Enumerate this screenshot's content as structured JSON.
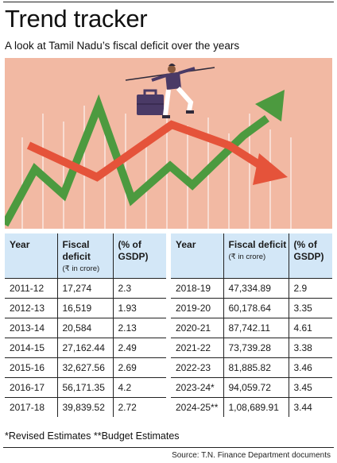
{
  "header": {
    "title": "Trend tracker",
    "subtitle": "A look at Tamil Nadu’s fiscal deficit over the years"
  },
  "illustration": {
    "description_icons": [
      "tightrope-walker",
      "briefcase",
      "green-up-arrow",
      "red-down-arrow"
    ],
    "colors": {
      "background": "#f2b9a3",
      "green": "#4c9a3f",
      "red": "#e5533a",
      "gridline": "#ffffff"
    }
  },
  "table": {
    "headers": {
      "year": "Year",
      "deficit": "Fiscal deficit",
      "deficit_unit": "(₹ in crore)",
      "gsdp": "(% of GSDP)"
    },
    "left_rows": [
      {
        "year": "2011-12",
        "deficit": "17,274",
        "gsdp": "2.3"
      },
      {
        "year": "2012-13",
        "deficit": "16,519",
        "gsdp": "1.93"
      },
      {
        "year": "2013-14",
        "deficit": "20,584",
        "gsdp": "2.13"
      },
      {
        "year": "2014-15",
        "deficit": "27,162.44",
        "gsdp": "2.49"
      },
      {
        "year": "2015-16",
        "deficit": "32,627.56",
        "gsdp": "2.69"
      },
      {
        "year": "2016-17",
        "deficit": "56,171.35",
        "gsdp": "4.2"
      },
      {
        "year": "2017-18",
        "deficit": "39,839.52",
        "gsdp": "2.72"
      }
    ],
    "right_rows": [
      {
        "year": "2018-19",
        "deficit": "47,334.89",
        "gsdp": "2.9"
      },
      {
        "year": "2019-20",
        "deficit": "60,178.64",
        "gsdp": "3.35"
      },
      {
        "year": "2020-21",
        "deficit": "87,742.11",
        "gsdp": "4.61"
      },
      {
        "year": "2021-22",
        "deficit": "73,739.28",
        "gsdp": "3.38"
      },
      {
        "year": "2022-23",
        "deficit": "81,885.82",
        "gsdp": "3.46"
      },
      {
        "year": "2023-24*",
        "deficit": "94,059.72",
        "gsdp": "3.45"
      },
      {
        "year": "2024-25**",
        "deficit": "1,08,689.91",
        "gsdp": "3.44"
      }
    ]
  },
  "footnote": "*Revised Estimates **Budget Estimates",
  "source": "Source: T.N. Finance Department documents"
}
